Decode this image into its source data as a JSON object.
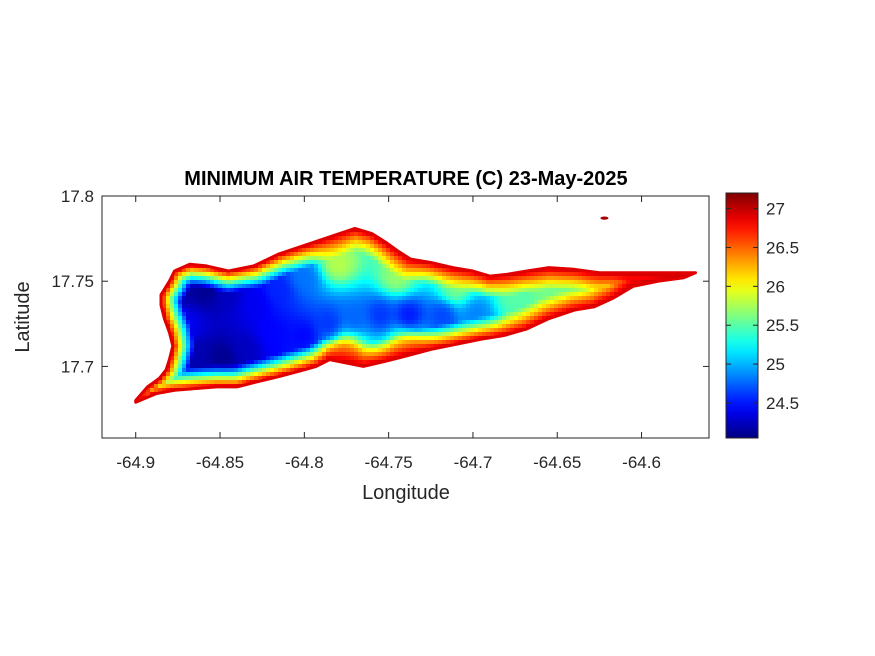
{
  "chart_data": {
    "type": "heatmap",
    "title": "MINIMUM AIR TEMPERATURE (C) 23-May-2025",
    "xlabel": "Longitude",
    "ylabel": "Latitude",
    "xlim": [
      -64.92,
      -64.56
    ],
    "ylim": [
      17.658,
      17.8
    ],
    "x_ticks": [
      -64.9,
      -64.85,
      -64.8,
      -64.75,
      -64.7,
      -64.65,
      -64.6
    ],
    "x_tick_labels": [
      "-64.9",
      "-64.85",
      "-64.8",
      "-64.75",
      "-64.7",
      "-64.65",
      "-64.6"
    ],
    "y_ticks": [
      17.7,
      17.75,
      17.8
    ],
    "y_tick_labels": [
      "17.7",
      "17.75",
      "17.8"
    ],
    "colormap": "jet",
    "colorbar": {
      "range": [
        24.05,
        27.2
      ],
      "ticks": [
        24.5,
        25,
        25.5,
        26,
        26.5,
        27
      ],
      "tick_labels": [
        "24.5",
        "25",
        "25.5",
        "26",
        "26.5",
        "27"
      ],
      "placement": "right"
    },
    "grid": false,
    "island_outline": [
      [
        -64.9,
        17.68
      ],
      [
        -64.893,
        17.688
      ],
      [
        -64.886,
        17.693
      ],
      [
        -64.882,
        17.698
      ],
      [
        -64.88,
        17.704
      ],
      [
        -64.878,
        17.712
      ],
      [
        -64.88,
        17.72
      ],
      [
        -64.883,
        17.728
      ],
      [
        -64.885,
        17.736
      ],
      [
        -64.885,
        17.742
      ],
      [
        -64.88,
        17.75
      ],
      [
        -64.877,
        17.756
      ],
      [
        -64.868,
        17.76
      ],
      [
        -64.858,
        17.759
      ],
      [
        -64.845,
        17.756
      ],
      [
        -64.83,
        17.759
      ],
      [
        -64.815,
        17.766
      ],
      [
        -64.8,
        17.771
      ],
      [
        -64.785,
        17.776
      ],
      [
        -64.77,
        17.781
      ],
      [
        -64.76,
        17.778
      ],
      [
        -64.752,
        17.773
      ],
      [
        -64.745,
        17.768
      ],
      [
        -64.737,
        17.763
      ],
      [
        -64.725,
        17.761
      ],
      [
        -64.712,
        17.758
      ],
      [
        -64.7,
        17.756
      ],
      [
        -64.69,
        17.753
      ],
      [
        -64.68,
        17.754
      ],
      [
        -64.668,
        17.756
      ],
      [
        -64.655,
        17.758
      ],
      [
        -64.64,
        17.757
      ],
      [
        -64.625,
        17.755
      ],
      [
        -64.61,
        17.755
      ],
      [
        -64.59,
        17.755
      ],
      [
        -64.568,
        17.755
      ],
      [
        -64.575,
        17.752
      ],
      [
        -64.59,
        17.75
      ],
      [
        -64.605,
        17.747
      ],
      [
        -64.617,
        17.74
      ],
      [
        -64.628,
        17.735
      ],
      [
        -64.64,
        17.733
      ],
      [
        -64.655,
        17.728
      ],
      [
        -64.668,
        17.722
      ],
      [
        -64.682,
        17.718
      ],
      [
        -64.695,
        17.716
      ],
      [
        -64.71,
        17.713
      ],
      [
        -64.725,
        17.71
      ],
      [
        -64.74,
        17.706
      ],
      [
        -64.752,
        17.703
      ],
      [
        -64.765,
        17.7
      ],
      [
        -64.775,
        17.702
      ],
      [
        -64.785,
        17.704
      ],
      [
        -64.793,
        17.7
      ],
      [
        -64.8,
        17.698
      ],
      [
        -64.815,
        17.694
      ],
      [
        -64.828,
        17.691
      ],
      [
        -64.84,
        17.688
      ],
      [
        -64.852,
        17.688
      ],
      [
        -64.865,
        17.687
      ],
      [
        -64.877,
        17.686
      ],
      [
        -64.888,
        17.684
      ],
      [
        -64.9,
        17.679
      ]
    ],
    "temperature_field": {
      "base_temperature_c": 27.0,
      "coastal_edge_temperature_c": 26.9,
      "station_points": [
        {
          "lon": -64.872,
          "lat": 17.748,
          "temp_c": 24.15
        },
        {
          "lon": -64.858,
          "lat": 17.745,
          "temp_c": 24.1
        },
        {
          "lon": -64.845,
          "lat": 17.742,
          "temp_c": 24.25
        },
        {
          "lon": -64.83,
          "lat": 17.738,
          "temp_c": 24.4
        },
        {
          "lon": -64.815,
          "lat": 17.745,
          "temp_c": 24.55
        },
        {
          "lon": -64.8,
          "lat": 17.752,
          "temp_c": 24.8
        },
        {
          "lon": -64.865,
          "lat": 17.706,
          "temp_c": 24.2
        },
        {
          "lon": -64.848,
          "lat": 17.705,
          "temp_c": 24.1
        },
        {
          "lon": -64.835,
          "lat": 17.71,
          "temp_c": 24.25
        },
        {
          "lon": -64.818,
          "lat": 17.718,
          "temp_c": 24.45
        },
        {
          "lon": -64.8,
          "lat": 17.718,
          "temp_c": 24.45
        },
        {
          "lon": -64.785,
          "lat": 17.725,
          "temp_c": 24.6
        },
        {
          "lon": -64.77,
          "lat": 17.728,
          "temp_c": 24.75
        },
        {
          "lon": -64.755,
          "lat": 17.73,
          "temp_c": 24.6
        },
        {
          "lon": -64.738,
          "lat": 17.73,
          "temp_c": 24.5
        },
        {
          "lon": -64.718,
          "lat": 17.73,
          "temp_c": 24.65
        },
        {
          "lon": -64.698,
          "lat": 17.731,
          "temp_c": 24.85
        },
        {
          "lon": -64.87,
          "lat": 17.725,
          "temp_c": 24.4
        },
        {
          "lon": -64.78,
          "lat": 17.76,
          "temp_c": 25.8
        },
        {
          "lon": -64.745,
          "lat": 17.752,
          "temp_c": 25.7
        },
        {
          "lon": -64.71,
          "lat": 17.745,
          "temp_c": 25.6
        },
        {
          "lon": -64.675,
          "lat": 17.74,
          "temp_c": 25.5
        },
        {
          "lon": -64.655,
          "lat": 17.748,
          "temp_c": 25.6
        },
        {
          "lon": -64.64,
          "lat": 17.747,
          "temp_c": 25.55
        },
        {
          "lon": -64.625,
          "lat": 17.747,
          "temp_c": 25.7
        },
        {
          "lon": -64.6,
          "lat": 17.752,
          "temp_c": 26.3
        },
        {
          "lon": -64.775,
          "lat": 17.71,
          "temp_c": 26.2
        },
        {
          "lon": -64.74,
          "lat": 17.712,
          "temp_c": 25.9
        }
      ],
      "islet": {
        "lon": -64.622,
        "lat": 17.787,
        "temp_c": 27.1
      }
    }
  }
}
